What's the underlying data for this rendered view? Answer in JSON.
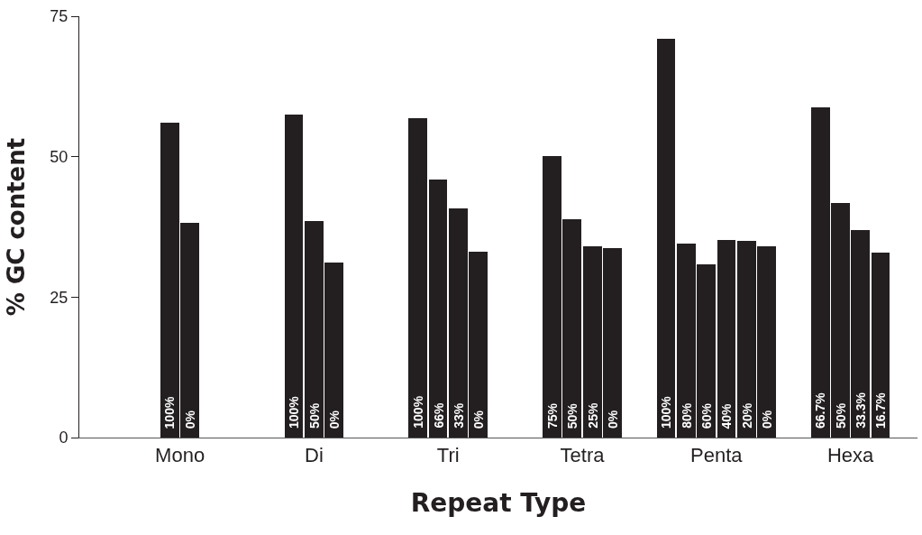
{
  "chart_data": {
    "type": "bar",
    "xlabel": "Repeat Type",
    "ylabel": "% GC content",
    "categories": [
      "Mono",
      "Di",
      "Tri",
      "Tetra",
      "Penta",
      "Hexa"
    ],
    "series": [
      {
        "color": "#231f20",
        "values": [
          56.0,
          57.5,
          56.8,
          50.1,
          71.0,
          58.8
        ]
      },
      {
        "color": "#231f20",
        "values": [
          38.2,
          38.5,
          45.9,
          38.9,
          34.6,
          41.8
        ]
      },
      {
        "color": "#231f20",
        "values": [
          null,
          31.1,
          40.8,
          34.0,
          30.8,
          36.9
        ]
      },
      {
        "color": "#231f20",
        "values": [
          null,
          null,
          33.1,
          33.7,
          35.2,
          33.0
        ]
      },
      {
        "color": "#231f20",
        "values": [
          null,
          null,
          null,
          null,
          35.0,
          null
        ]
      },
      {
        "color": "#231f20",
        "values": [
          null,
          null,
          null,
          null,
          34.0,
          null
        ]
      }
    ],
    "ylim": [
      0,
      75
    ],
    "yticks": [
      0,
      25,
      50,
      75
    ],
    "annotations": [
      "100%",
      "0%",
      "100%",
      "50%",
      "0%",
      "100%",
      "66%",
      "33%",
      "0%",
      "75%",
      "50%",
      "25%",
      "0%",
      "100%",
      "80%",
      "60%",
      "40%",
      "20%",
      "0%",
      "66.7%",
      "50%",
      "33.3%",
      "16.7%"
    ]
  }
}
